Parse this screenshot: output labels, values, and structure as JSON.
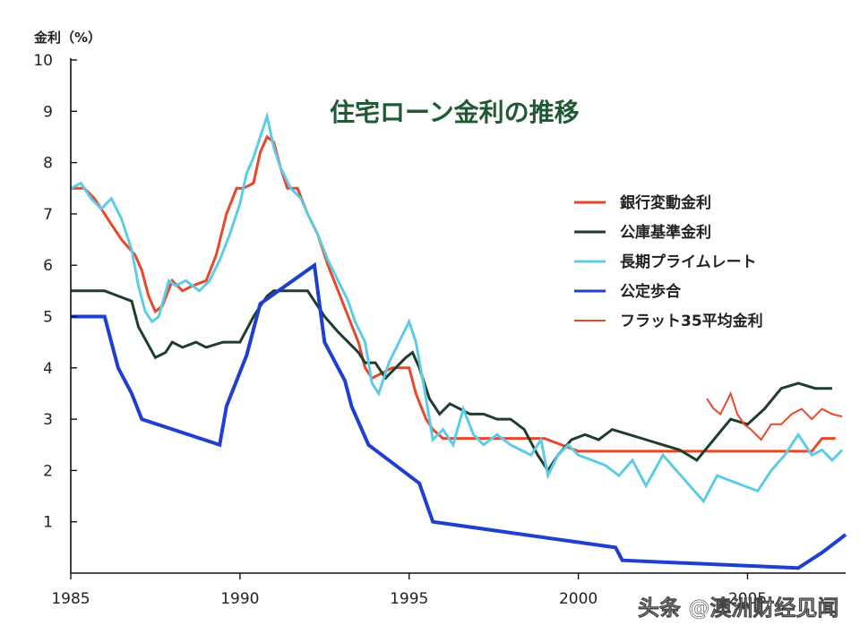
{
  "chart_data": {
    "type": "line",
    "title": "住宅ローン金利の推移",
    "ylabel": "金利（%）",
    "xlabel": "",
    "xlim": [
      1985,
      2007.9
    ],
    "ylim": [
      0,
      10
    ],
    "x_ticks": [
      1985,
      1990,
      1995,
      2000,
      2005
    ],
    "y_ticks": [
      1,
      2,
      3,
      4,
      5,
      6,
      7,
      8,
      9,
      10
    ],
    "grid": false,
    "legend_position": "right",
    "series": [
      {
        "name": "銀行変動金利",
        "color": "#e8482a",
        "width": 3,
        "x": [
          1985.0,
          1985.4,
          1985.7,
          1986.0,
          1986.2,
          1986.5,
          1986.9,
          1987.1,
          1987.3,
          1987.5,
          1987.7,
          1988.0,
          1988.3,
          1988.6,
          1989.0,
          1989.3,
          1989.6,
          1989.9,
          1990.1,
          1990.4,
          1990.6,
          1990.8,
          1991.0,
          1991.2,
          1991.4,
          1991.7,
          1992.0,
          1992.3,
          1992.6,
          1992.9,
          1993.2,
          1993.5,
          1993.7,
          1993.9,
          1994.2,
          1994.5,
          1994.8,
          1995.0,
          1995.2,
          1995.5,
          1995.7,
          1996.0,
          1997.0,
          1998.0,
          1999.0,
          2000.0,
          2001.0,
          2002.0,
          2003.0,
          2004.0,
          2005.0,
          2006.0,
          2006.5,
          2006.9,
          2007.2,
          2007.6
        ],
        "y": [
          7.5,
          7.5,
          7.3,
          7.0,
          6.8,
          6.5,
          6.2,
          5.9,
          5.4,
          5.1,
          5.2,
          5.7,
          5.5,
          5.6,
          5.7,
          6.2,
          7.0,
          7.5,
          7.5,
          7.6,
          8.2,
          8.5,
          8.4,
          7.9,
          7.5,
          7.5,
          7.0,
          6.6,
          6.0,
          5.5,
          5.0,
          4.5,
          4.0,
          3.8,
          3.9,
          4.0,
          4.0,
          4.0,
          3.5,
          3.0,
          2.8,
          2.625,
          2.625,
          2.625,
          2.625,
          2.375,
          2.375,
          2.375,
          2.375,
          2.375,
          2.375,
          2.375,
          2.375,
          2.375,
          2.625,
          2.625
        ]
      },
      {
        "name": "公庫基準金利",
        "color": "#1e3d2a",
        "width": 3,
        "x": [
          1985.0,
          1986.0,
          1986.8,
          1987.0,
          1987.5,
          1987.8,
          1988.0,
          1988.3,
          1988.7,
          1989.0,
          1989.5,
          1990.0,
          1990.4,
          1990.8,
          1991.0,
          1991.5,
          1992.0,
          1992.2,
          1992.5,
          1992.9,
          1993.2,
          1993.5,
          1993.7,
          1994.0,
          1994.3,
          1994.6,
          1994.9,
          1995.1,
          1995.3,
          1995.6,
          1995.9,
          1996.2,
          1996.5,
          1996.8,
          1997.2,
          1997.6,
          1998.0,
          1998.4,
          1998.8,
          1999.1,
          1999.4,
          1999.8,
          2000.2,
          2000.6,
          2001.0,
          2001.5,
          2002.0,
          2002.5,
          2003.0,
          2003.5,
          2004.0,
          2004.5,
          2005.0,
          2005.5,
          2006.0,
          2006.5,
          2007.0,
          2007.5
        ],
        "y": [
          5.5,
          5.5,
          5.3,
          4.8,
          4.2,
          4.3,
          4.5,
          4.4,
          4.5,
          4.4,
          4.5,
          4.5,
          5.0,
          5.4,
          5.5,
          5.5,
          5.5,
          5.3,
          5.0,
          4.7,
          4.5,
          4.3,
          4.1,
          4.1,
          3.8,
          4.0,
          4.2,
          4.3,
          4.0,
          3.4,
          3.1,
          3.3,
          3.2,
          3.1,
          3.1,
          3.0,
          3.0,
          2.8,
          2.3,
          2.0,
          2.3,
          2.6,
          2.7,
          2.6,
          2.8,
          2.7,
          2.6,
          2.5,
          2.4,
          2.2,
          2.6,
          3.0,
          2.9,
          3.2,
          3.6,
          3.7,
          3.6,
          3.6
        ]
      },
      {
        "name": "長期プライムレート",
        "color": "#5ecbe6",
        "width": 3,
        "x": [
          1985.0,
          1985.3,
          1985.6,
          1985.9,
          1986.2,
          1986.5,
          1986.8,
          1987.0,
          1987.2,
          1987.4,
          1987.6,
          1987.9,
          1988.1,
          1988.4,
          1988.8,
          1989.1,
          1989.4,
          1989.7,
          1990.0,
          1990.2,
          1990.4,
          1990.6,
          1990.8,
          1991.0,
          1991.2,
          1991.5,
          1991.8,
          1992.0,
          1992.3,
          1992.6,
          1992.9,
          1993.2,
          1993.4,
          1993.7,
          1993.9,
          1994.1,
          1994.4,
          1994.7,
          1995.0,
          1995.2,
          1995.5,
          1995.7,
          1996.0,
          1996.3,
          1996.6,
          1996.9,
          1997.2,
          1997.6,
          1998.0,
          1998.3,
          1998.6,
          1998.9,
          1999.1,
          1999.4,
          1999.7,
          2000.0,
          2000.4,
          2000.8,
          2001.2,
          2001.6,
          2002.0,
          2002.5,
          2002.9,
          2003.3,
          2003.7,
          2004.1,
          2004.5,
          2004.9,
          2005.3,
          2005.7,
          2006.1,
          2006.5,
          2006.9,
          2007.2,
          2007.5,
          2007.8
        ],
        "y": [
          7.5,
          7.6,
          7.3,
          7.1,
          7.3,
          6.9,
          6.3,
          5.6,
          5.1,
          4.9,
          5.0,
          5.7,
          5.6,
          5.7,
          5.5,
          5.7,
          6.1,
          6.6,
          7.2,
          7.8,
          8.1,
          8.5,
          8.9,
          8.3,
          7.9,
          7.5,
          7.3,
          7.0,
          6.6,
          6.1,
          5.7,
          5.3,
          4.9,
          4.5,
          3.7,
          3.5,
          4.1,
          4.5,
          4.9,
          4.5,
          3.4,
          2.6,
          2.8,
          2.5,
          3.2,
          2.7,
          2.5,
          2.7,
          2.5,
          2.4,
          2.3,
          2.6,
          1.9,
          2.3,
          2.5,
          2.3,
          2.2,
          2.1,
          1.9,
          2.2,
          1.7,
          2.3,
          2.0,
          1.7,
          1.4,
          1.9,
          1.8,
          1.7,
          1.6,
          2.0,
          2.3,
          2.7,
          2.3,
          2.4,
          2.2,
          2.4
        ]
      },
      {
        "name": "公定歩合",
        "color": "#1f3fd0",
        "width": 4,
        "x": [
          1985.0,
          1986.0,
          1986.2,
          1986.4,
          1986.8,
          1987.1,
          1989.4,
          1989.6,
          1989.9,
          1990.2,
          1990.6,
          1992.2,
          1992.4,
          1992.5,
          1993.1,
          1993.3,
          1993.8,
          1995.3,
          1995.7,
          2001.1,
          2001.3,
          2006.5,
          2007.2,
          2007.9
        ],
        "y": [
          5.0,
          5.0,
          4.5,
          4.0,
          3.5,
          3.0,
          2.5,
          3.25,
          3.75,
          4.25,
          5.25,
          6.0,
          5.0,
          4.5,
          3.75,
          3.25,
          2.5,
          1.75,
          1.0,
          0.5,
          0.25,
          0.1,
          0.4,
          0.75
        ]
      },
      {
        "name": "フラット35平均金利",
        "color": "#e8482a",
        "width": 2,
        "x": [
          2003.8,
          2004.0,
          2004.2,
          2004.5,
          2004.7,
          2004.9,
          2005.1,
          2005.4,
          2005.7,
          2006.0,
          2006.3,
          2006.6,
          2006.9,
          2007.2,
          2007.5,
          2007.8
        ],
        "y": [
          3.4,
          3.2,
          3.1,
          3.5,
          3.1,
          2.9,
          2.8,
          2.6,
          2.9,
          2.9,
          3.1,
          3.2,
          3.0,
          3.2,
          3.1,
          3.05
        ]
      }
    ]
  },
  "watermark": "头条 @澳洲财经见闻"
}
